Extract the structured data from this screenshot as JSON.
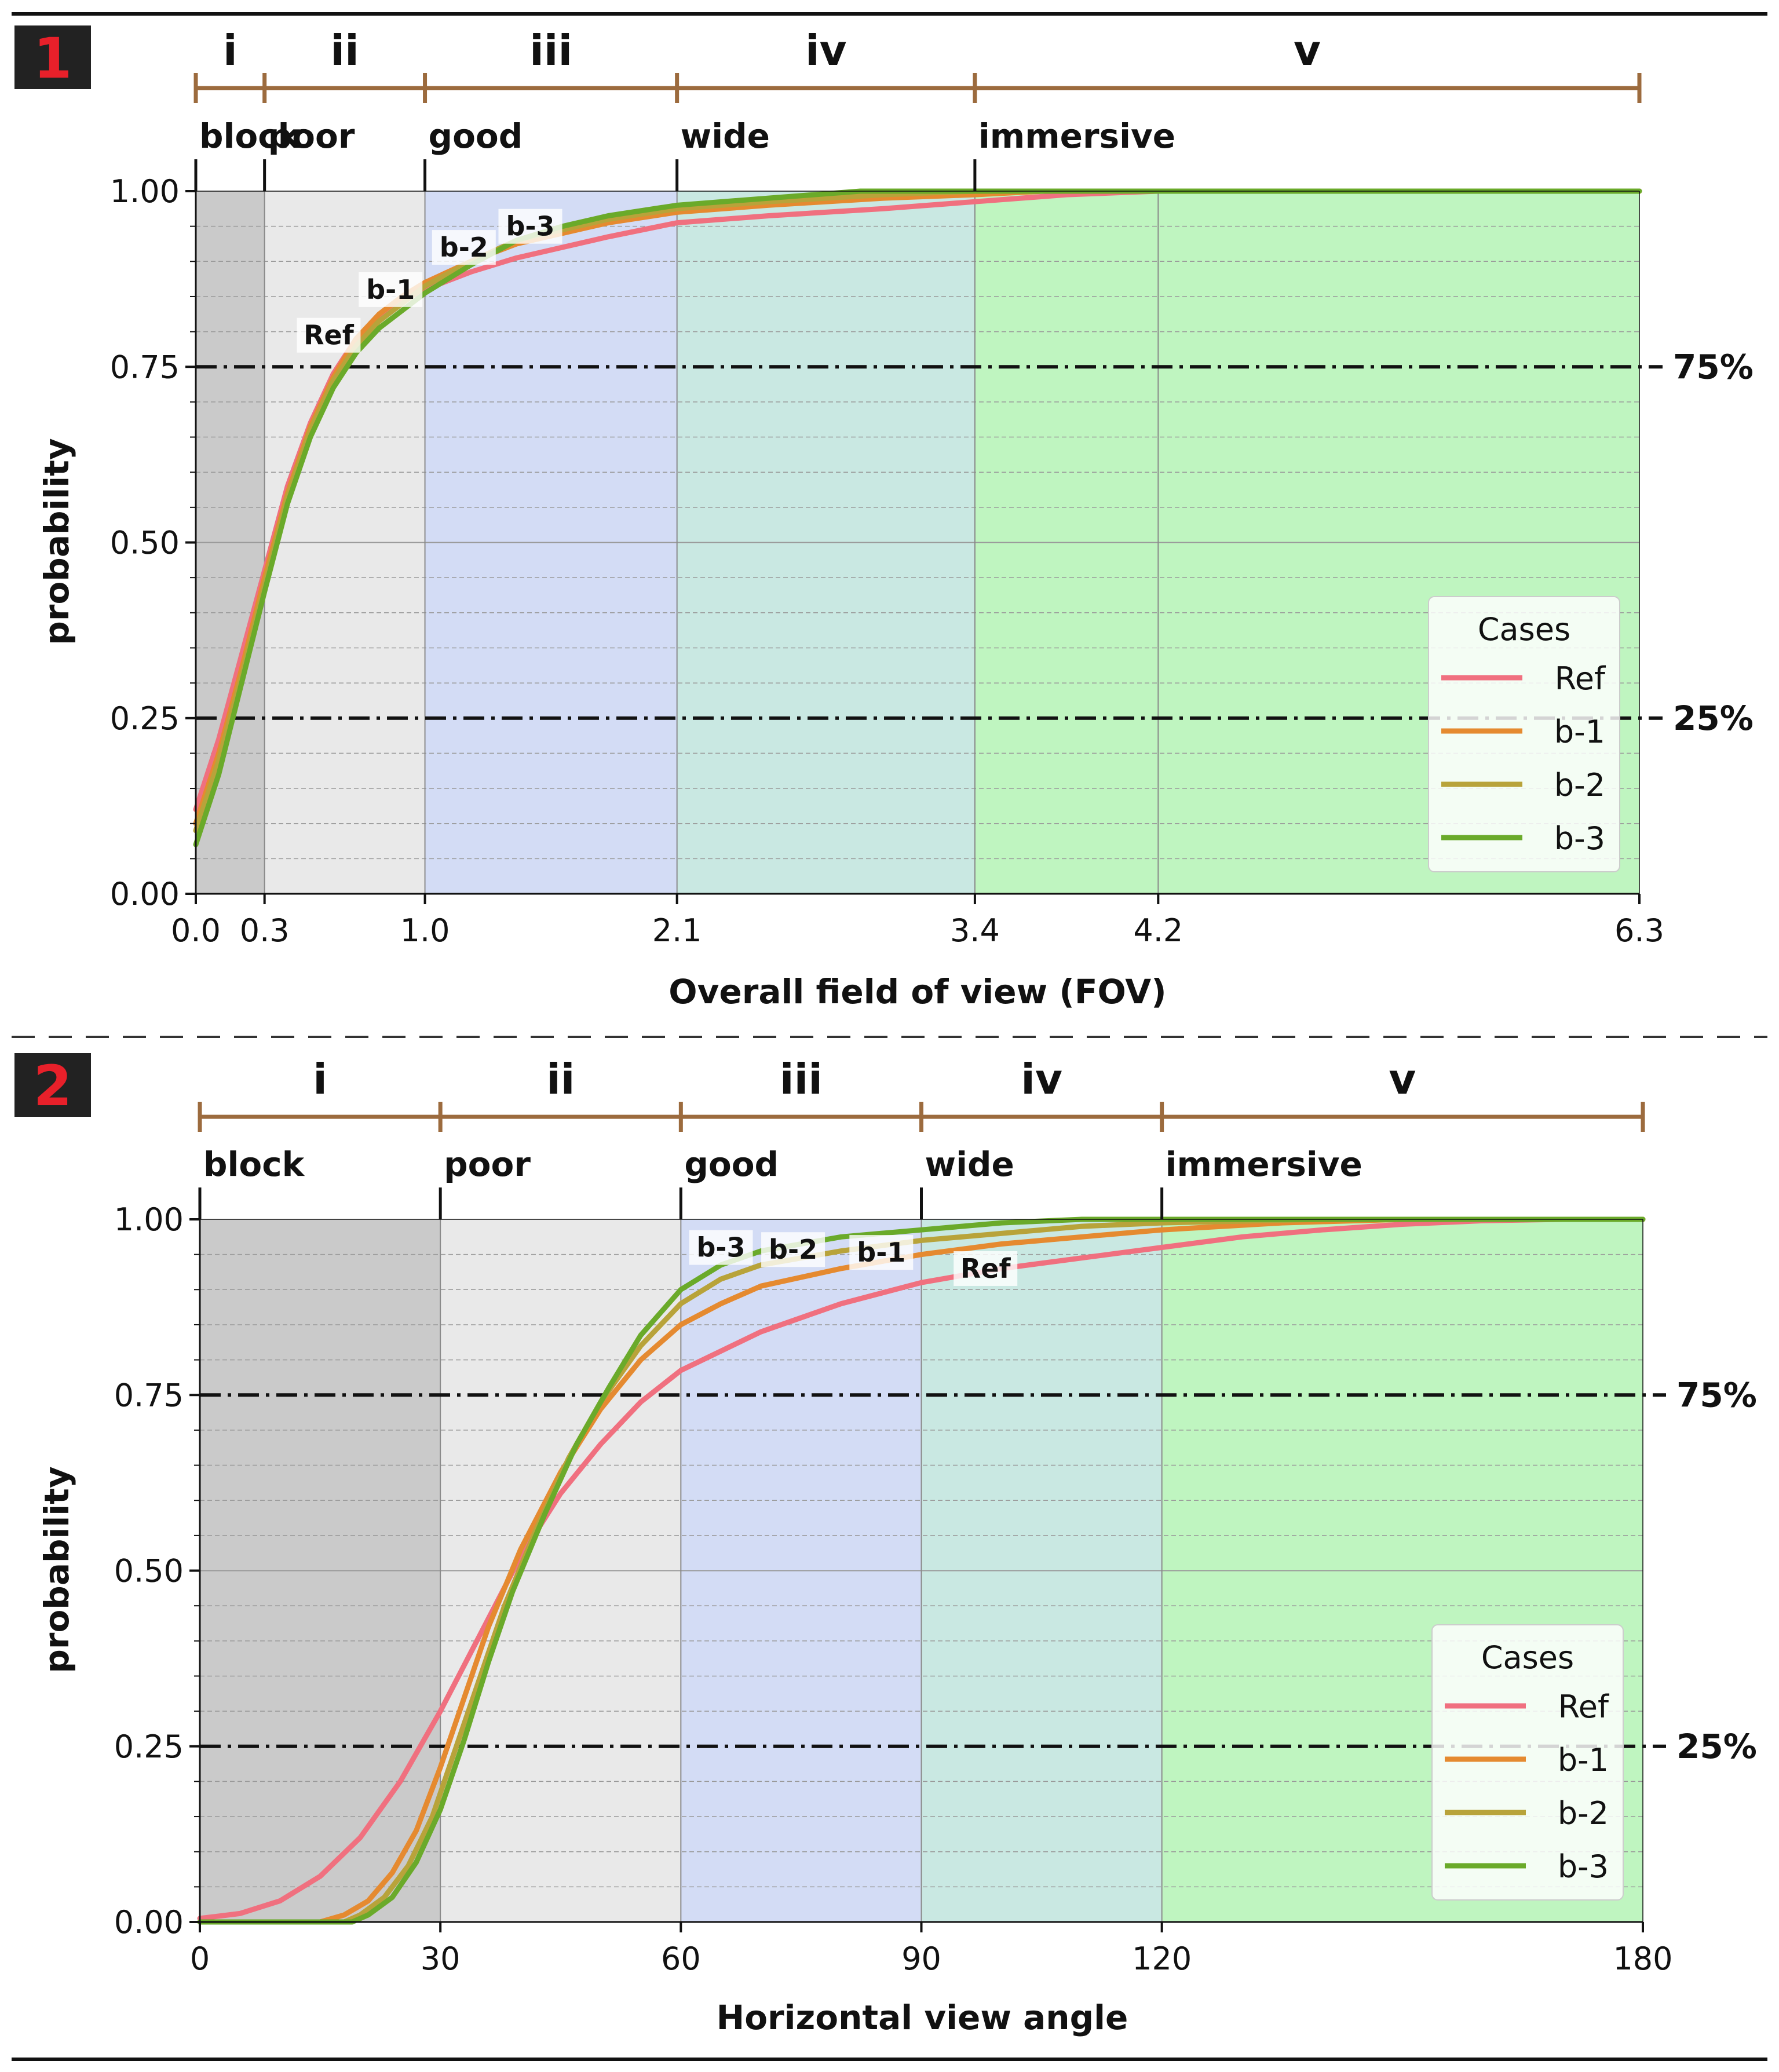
{
  "chart_data": [
    {
      "panel_number": "1",
      "type": "line",
      "xlabel": "Overall field of view (FOV)",
      "ylabel": "probability",
      "xlim": [
        0,
        6.3
      ],
      "ylim": [
        0,
        1
      ],
      "x_ticks": [
        0.0,
        0.3,
        1.0,
        2.1,
        3.4,
        4.2,
        6.3
      ],
      "x_tick_labels": [
        "0.0",
        "0.3",
        "1.0",
        "2.1",
        "3.4",
        "4.2",
        "6.3"
      ],
      "y_ticks": [
        0,
        0.25,
        0.5,
        0.75,
        1.0
      ],
      "y_tick_labels": [
        "0.00",
        "0.25",
        "0.50",
        "0.75",
        "1.00"
      ],
      "zones": [
        {
          "roman": "i",
          "label": "block",
          "from": 0.0,
          "to": 0.3,
          "color": "#cacaca"
        },
        {
          "roman": "ii",
          "label": "poor",
          "from": 0.3,
          "to": 1.0,
          "color": "#e9e9e9"
        },
        {
          "roman": "iii",
          "label": "good",
          "from": 1.0,
          "to": 2.1,
          "color": "#d3dcf5"
        },
        {
          "roman": "iv",
          "label": "wide",
          "from": 2.1,
          "to": 3.4,
          "color": "#c9e8e2"
        },
        {
          "roman": "v",
          "label": "immersive",
          "from": 3.4,
          "to": 6.3,
          "color": "#bff5c0"
        }
      ],
      "bracket_end": 6.3,
      "extra_gridlines_x": [
        4.2
      ],
      "reference_lines": [
        {
          "y": 0.75,
          "label": "75%"
        },
        {
          "y": 0.25,
          "label": "25%"
        }
      ],
      "legend": {
        "title": "Cases",
        "position": "lower-right"
      },
      "series": [
        {
          "name": "Ref",
          "color": "#f0707f",
          "x": [
            0,
            0.1,
            0.2,
            0.3,
            0.4,
            0.5,
            0.6,
            0.7,
            0.8,
            0.9,
            1.0,
            1.2,
            1.4,
            1.6,
            1.8,
            2.1,
            2.5,
            3.0,
            3.4,
            3.8,
            4.2,
            6.3
          ],
          "values": [
            0.12,
            0.22,
            0.34,
            0.46,
            0.58,
            0.67,
            0.74,
            0.79,
            0.82,
            0.845,
            0.86,
            0.885,
            0.905,
            0.92,
            0.935,
            0.955,
            0.965,
            0.975,
            0.985,
            0.995,
            1.0,
            1.0
          ],
          "annotation": {
            "text": "Ref",
            "x": 0.58,
            "y": 0.79
          }
        },
        {
          "name": "b-1",
          "color": "#e58a30",
          "x": [
            0,
            0.1,
            0.2,
            0.3,
            0.4,
            0.5,
            0.6,
            0.7,
            0.8,
            0.9,
            1.0,
            1.2,
            1.4,
            1.6,
            1.8,
            2.1,
            2.5,
            3.0,
            3.4,
            3.7,
            4.0,
            6.3
          ],
          "values": [
            0.1,
            0.2,
            0.32,
            0.45,
            0.57,
            0.665,
            0.735,
            0.79,
            0.825,
            0.85,
            0.87,
            0.9,
            0.925,
            0.94,
            0.955,
            0.97,
            0.98,
            0.99,
            0.995,
            1.0,
            1.0,
            1.0
          ],
          "annotation": {
            "text": "b-1",
            "x": 0.85,
            "y": 0.855
          }
        },
        {
          "name": "b-2",
          "color": "#b8a33a",
          "x": [
            0,
            0.1,
            0.2,
            0.3,
            0.4,
            0.5,
            0.6,
            0.7,
            0.8,
            0.9,
            1.0,
            1.2,
            1.4,
            1.6,
            1.8,
            2.1,
            2.5,
            3.0,
            3.4,
            3.6,
            6.3
          ],
          "values": [
            0.09,
            0.19,
            0.31,
            0.44,
            0.565,
            0.66,
            0.73,
            0.78,
            0.815,
            0.84,
            0.865,
            0.9,
            0.93,
            0.945,
            0.96,
            0.975,
            0.985,
            0.995,
            1.0,
            1.0,
            1.0
          ],
          "annotation": {
            "text": "b-2",
            "x": 1.17,
            "y": 0.915
          }
        },
        {
          "name": "b-3",
          "color": "#6aaa2a",
          "x": [
            0,
            0.1,
            0.2,
            0.3,
            0.4,
            0.5,
            0.6,
            0.7,
            0.8,
            0.9,
            1.0,
            1.2,
            1.4,
            1.6,
            1.8,
            2.1,
            2.5,
            2.9,
            3.2,
            6.3
          ],
          "values": [
            0.07,
            0.17,
            0.3,
            0.43,
            0.555,
            0.65,
            0.72,
            0.77,
            0.805,
            0.83,
            0.855,
            0.895,
            0.93,
            0.95,
            0.965,
            0.98,
            0.99,
            1.0,
            1.0,
            1.0
          ],
          "annotation": {
            "text": "b-3",
            "x": 1.46,
            "y": 0.945
          }
        }
      ]
    },
    {
      "panel_number": "2",
      "type": "line",
      "xlabel": "Horizontal view angle",
      "ylabel": "probability",
      "xlim": [
        0,
        180
      ],
      "ylim": [
        0,
        1
      ],
      "x_ticks": [
        0,
        30,
        60,
        90,
        120,
        180
      ],
      "x_tick_labels": [
        "0",
        "30",
        "60",
        "90",
        "120",
        "180"
      ],
      "y_ticks": [
        0,
        0.25,
        0.5,
        0.75,
        1.0
      ],
      "y_tick_labels": [
        "0.00",
        "0.25",
        "0.50",
        "0.75",
        "1.00"
      ],
      "zones": [
        {
          "roman": "i",
          "label": "block",
          "from": 0,
          "to": 30,
          "color": "#cacaca"
        },
        {
          "roman": "ii",
          "label": "poor",
          "from": 30,
          "to": 60,
          "color": "#e9e9e9"
        },
        {
          "roman": "iii",
          "label": "good",
          "from": 60,
          "to": 90,
          "color": "#d3dcf5"
        },
        {
          "roman": "iv",
          "label": "wide",
          "from": 90,
          "to": 120,
          "color": "#c9e8e2"
        },
        {
          "roman": "v",
          "label": "immersive",
          "from": 120,
          "to": 180,
          "color": "#bff5c0"
        }
      ],
      "bracket_end": 180,
      "extra_gridlines_x": [],
      "reference_lines": [
        {
          "y": 0.75,
          "label": "75%"
        },
        {
          "y": 0.25,
          "label": "25%"
        }
      ],
      "legend": {
        "title": "Cases",
        "position": "lower-right"
      },
      "series": [
        {
          "name": "Ref",
          "color": "#f0707f",
          "x": [
            0,
            5,
            10,
            15,
            20,
            25,
            30,
            35,
            40,
            45,
            50,
            55,
            60,
            70,
            80,
            90,
            100,
            110,
            120,
            130,
            140,
            150,
            160,
            170,
            180
          ],
          "values": [
            0.005,
            0.012,
            0.03,
            0.065,
            0.12,
            0.2,
            0.3,
            0.41,
            0.52,
            0.61,
            0.68,
            0.74,
            0.785,
            0.84,
            0.88,
            0.91,
            0.93,
            0.945,
            0.96,
            0.975,
            0.985,
            0.993,
            0.998,
            1.0,
            1.0
          ],
          "annotation": {
            "text": "Ref",
            "x": 98,
            "y": 0.925
          }
        },
        {
          "name": "b-1",
          "color": "#e58a30",
          "x": [
            0,
            15,
            18,
            21,
            24,
            27,
            30,
            33,
            36,
            40,
            45,
            50,
            55,
            60,
            65,
            70,
            80,
            90,
            100,
            110,
            120,
            135,
            150,
            160,
            180
          ],
          "values": [
            0.0,
            0.0,
            0.01,
            0.03,
            0.07,
            0.13,
            0.22,
            0.32,
            0.42,
            0.53,
            0.64,
            0.73,
            0.8,
            0.85,
            0.88,
            0.905,
            0.93,
            0.95,
            0.965,
            0.975,
            0.985,
            0.995,
            1.0,
            1.0,
            1.0
          ],
          "annotation": {
            "text": "b-1",
            "x": 85,
            "y": 0.948
          }
        },
        {
          "name": "b-2",
          "color": "#b8a33a",
          "x": [
            0,
            18,
            20,
            23,
            26,
            29,
            32,
            35,
            38,
            42,
            46,
            50,
            55,
            60,
            65,
            70,
            80,
            90,
            100,
            110,
            120,
            140,
            180
          ],
          "values": [
            0.0,
            0.0,
            0.01,
            0.035,
            0.08,
            0.15,
            0.25,
            0.35,
            0.45,
            0.56,
            0.66,
            0.74,
            0.82,
            0.88,
            0.915,
            0.935,
            0.955,
            0.97,
            0.98,
            0.99,
            0.995,
            1.0,
            1.0
          ],
          "annotation": {
            "text": "b-2",
            "x": 74,
            "y": 0.952
          }
        },
        {
          "name": "b-3",
          "color": "#6aaa2a",
          "x": [
            0,
            19,
            21,
            24,
            27,
            30,
            33,
            36,
            39,
            43,
            47,
            51,
            55,
            60,
            65,
            70,
            80,
            90,
            100,
            110,
            120,
            180
          ],
          "values": [
            0.0,
            0.0,
            0.01,
            0.035,
            0.085,
            0.16,
            0.26,
            0.37,
            0.47,
            0.58,
            0.68,
            0.76,
            0.835,
            0.9,
            0.935,
            0.955,
            0.975,
            0.985,
            0.995,
            1.0,
            1.0,
            1.0
          ],
          "annotation": {
            "text": "b-3",
            "x": 65,
            "y": 0.955
          }
        }
      ]
    }
  ]
}
